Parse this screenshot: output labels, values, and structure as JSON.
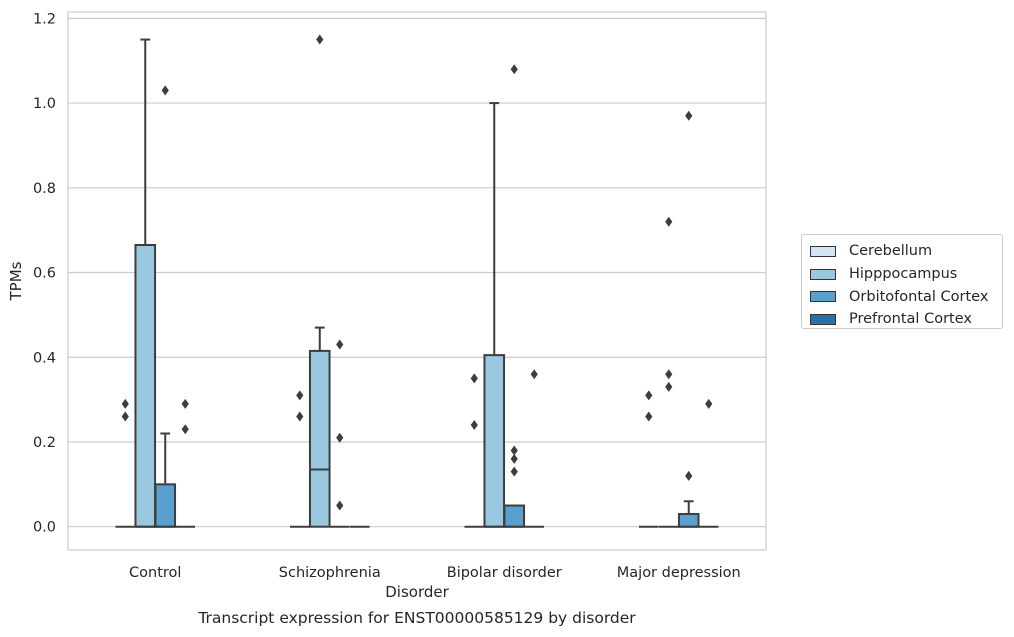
{
  "chart_data": {
    "type": "box",
    "title": "Transcript expression for ENST00000585129 by disorder",
    "xlabel": "Disorder",
    "ylabel": "TPMs",
    "ylim": [
      -0.055,
      1.215
    ],
    "yticks": [
      0.0,
      0.2,
      0.4,
      0.6,
      0.8,
      1.0,
      1.2
    ],
    "ytick_labels": [
      "0.0",
      "0.2",
      "0.4",
      "0.6",
      "0.8",
      "1.0",
      "1.2"
    ],
    "grid": "horizontal",
    "legend_position": "right",
    "categories": [
      "Control",
      "Schizophrenia",
      "Bipolar disorder",
      "Major depression"
    ],
    "series": [
      {
        "name": "Cerebellum",
        "color": "#d2e3f3",
        "boxes": [
          {
            "q1": 0,
            "median": 0,
            "q3": 0,
            "whislo": 0,
            "whishi": 0,
            "fliers": [
              0.26,
              0.29
            ]
          },
          {
            "q1": 0,
            "median": 0,
            "q3": 0,
            "whislo": 0,
            "whishi": 0,
            "fliers": [
              0.26,
              0.31
            ]
          },
          {
            "q1": 0,
            "median": 0,
            "q3": 0,
            "whislo": 0,
            "whishi": 0,
            "fliers": [
              0.24,
              0.35
            ]
          },
          {
            "q1": 0,
            "median": 0,
            "q3": 0,
            "whislo": 0,
            "whishi": 0,
            "fliers": [
              0.26,
              0.31
            ]
          }
        ]
      },
      {
        "name": "Hipppocampus",
        "color": "#9ac8e0",
        "boxes": [
          {
            "q1": 0,
            "median": 0,
            "q3": 0.665,
            "whislo": 0,
            "whishi": 1.15,
            "fliers": []
          },
          {
            "q1": 0,
            "median": 0.135,
            "q3": 0.415,
            "whislo": 0,
            "whishi": 0.47,
            "fliers": [
              1.15
            ]
          },
          {
            "q1": 0,
            "median": 0,
            "q3": 0.405,
            "whislo": 0,
            "whishi": 1.0,
            "fliers": []
          },
          {
            "q1": 0,
            "median": 0,
            "q3": 0,
            "whislo": 0,
            "whishi": 0,
            "fliers": [
              0.33,
              0.36,
              0.72
            ]
          }
        ]
      },
      {
        "name": "Orbitofontal Cortex",
        "color": "#5a9fcd",
        "boxes": [
          {
            "q1": 0,
            "median": 0,
            "q3": 0.1,
            "whislo": 0,
            "whishi": 0.22,
            "fliers": [
              1.03
            ]
          },
          {
            "q1": 0,
            "median": 0,
            "q3": 0,
            "whislo": 0,
            "whishi": 0,
            "fliers": [
              0.05,
              0.21,
              0.43
            ]
          },
          {
            "q1": 0,
            "median": 0,
            "q3": 0.05,
            "whislo": 0,
            "whishi": 0.05,
            "fliers": [
              0.13,
              0.16,
              0.18,
              1.08
            ]
          },
          {
            "q1": 0,
            "median": 0,
            "q3": 0.03,
            "whislo": 0,
            "whishi": 0.06,
            "fliers": [
              0.12,
              0.97
            ]
          }
        ]
      },
      {
        "name": "Prefrontal Cortex",
        "color": "#2e6fa8",
        "boxes": [
          {
            "q1": 0,
            "median": 0,
            "q3": 0,
            "whislo": 0,
            "whishi": 0,
            "fliers": [
              0.23,
              0.29
            ]
          },
          {
            "q1": 0,
            "median": 0,
            "q3": 0,
            "whislo": 0,
            "whishi": 0,
            "fliers": []
          },
          {
            "q1": 0,
            "median": 0,
            "q3": 0,
            "whislo": 0,
            "whishi": 0,
            "fliers": [
              0.36
            ]
          },
          {
            "q1": 0,
            "median": 0,
            "q3": 0,
            "whislo": 0,
            "whishi": 0,
            "fliers": [
              0.29
            ]
          }
        ]
      }
    ]
  }
}
